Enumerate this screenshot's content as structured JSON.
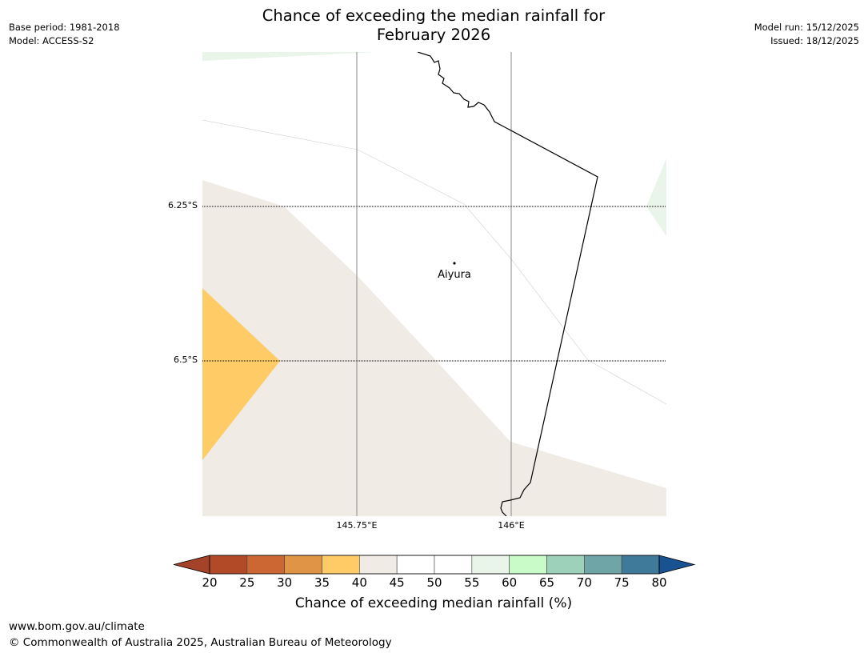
{
  "title": {
    "line1": "Chance of exceeding the median rainfall for",
    "line2": "February 2026"
  },
  "meta_left": {
    "base_period": "Base period: 1981-2018",
    "model": "Model: ACCESS-S2"
  },
  "meta_right": {
    "model_run": "Model run: 15/12/2025",
    "issued": "Issued: 18/12/2025"
  },
  "map": {
    "lat_labels": [
      "6.25°S",
      "6.5°S"
    ],
    "lon_labels": [
      "145.75°E",
      "146°E"
    ],
    "place": {
      "name": "Aiyura"
    },
    "colors": {
      "c35_40": "#fecb67",
      "c40_45": "#f0ebe5",
      "c55_60": "#e8f5e8",
      "coast": "#000000",
      "grid": "#888888"
    }
  },
  "colorbar": {
    "ticks": [
      "20",
      "25",
      "30",
      "35",
      "40",
      "45",
      "50",
      "55",
      "60",
      "65",
      "70",
      "75",
      "80"
    ],
    "colors": [
      "#a5432a",
      "#b24a27",
      "#cc6633",
      "#e09445",
      "#fecb67",
      "#f0ebe5",
      "#ffffff",
      "#ffffff",
      "#e8f5e8",
      "#c8fbc8",
      "#9dd1b9",
      "#6fa5a6",
      "#3f7a9a",
      "#185290"
    ],
    "label": "Chance of exceeding median rainfall (%)"
  },
  "footer": {
    "url": "www.bom.gov.au/climate",
    "copyright": "© Commonwealth of Australia 2025, Australian Bureau of Meteorology"
  }
}
